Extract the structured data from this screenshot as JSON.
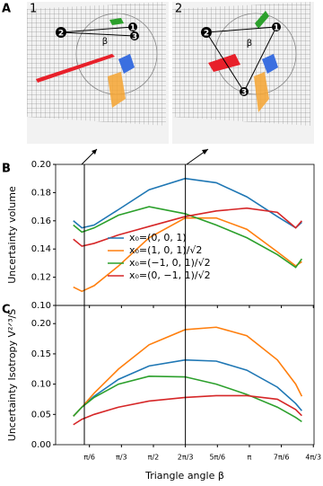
{
  "panel_a": {
    "label": "A",
    "views": [
      {
        "label": "1",
        "nodes": [
          "1",
          "2",
          "3"
        ],
        "angle": "β"
      },
      {
        "label": "2",
        "nodes": [
          "1",
          "2",
          "3"
        ],
        "angle": "β"
      }
    ]
  },
  "chart_data": [
    {
      "type": "line",
      "panel_label": "B",
      "ylabel": "Uncertainty volume",
      "x": [
        0.26,
        0.4,
        0.6,
        1.0,
        1.5,
        2.09,
        2.6,
        3.1,
        3.6,
        3.9,
        4.0
      ],
      "series": [
        {
          "name": "x₀=(0, 0, 1)",
          "color": "#1f77b4",
          "values": [
            0.16,
            0.155,
            0.157,
            0.168,
            0.182,
            0.19,
            0.187,
            0.177,
            0.163,
            0.155,
            0.159
          ]
        },
        {
          "name": "x₀=(1, 0, 1)/√2",
          "color": "#ff7f0e",
          "values": [
            0.113,
            0.11,
            0.114,
            0.128,
            0.148,
            0.162,
            0.162,
            0.154,
            0.138,
            0.128,
            0.131
          ]
        },
        {
          "name": "x₀=(−1, 0, 1)/√2",
          "color": "#2ca02c",
          "values": [
            0.157,
            0.152,
            0.155,
            0.164,
            0.17,
            0.165,
            0.157,
            0.148,
            0.136,
            0.127,
            0.133
          ]
        },
        {
          "name": "x₀=(0, −1, 1)/√2",
          "color": "#d62728",
          "values": [
            0.147,
            0.142,
            0.144,
            0.15,
            0.156,
            0.163,
            0.167,
            0.169,
            0.166,
            0.155,
            0.16
          ]
        }
      ],
      "xlim": [
        -0.03,
        4.2
      ],
      "ylim": [
        0.1,
        0.2
      ],
      "xticks": [
        0.5236,
        1.0472,
        1.5708,
        2.0944,
        2.618,
        3.1416,
        3.6652,
        4.1888
      ],
      "yticks": [
        {
          "value": 0.1,
          "label": "0.10"
        },
        {
          "value": 0.12,
          "label": "0.12"
        },
        {
          "value": 0.14,
          "label": "0.14"
        },
        {
          "value": 0.16,
          "label": "0.16"
        },
        {
          "value": 0.18,
          "label": "0.18"
        },
        {
          "value": 0.2,
          "label": "0.20"
        }
      ],
      "vlines": [
        0.44,
        2.0944
      ],
      "legend": "lower center"
    },
    {
      "type": "line",
      "panel_label": "C",
      "ylabel": "Uncertainty Isotropy V²ᐟ³/S",
      "xlabel": "Triangle angle β",
      "x": [
        0.26,
        0.4,
        0.6,
        1.0,
        1.5,
        2.09,
        2.6,
        3.1,
        3.6,
        3.9,
        4.0
      ],
      "series": [
        {
          "color": "#1f77b4",
          "values": [
            0.047,
            0.062,
            0.08,
            0.108,
            0.13,
            0.14,
            0.138,
            0.123,
            0.095,
            0.068,
            0.056
          ]
        },
        {
          "color": "#ff7f0e",
          "values": [
            0.047,
            0.062,
            0.085,
            0.125,
            0.165,
            0.19,
            0.194,
            0.18,
            0.14,
            0.1,
            0.08
          ]
        },
        {
          "color": "#2ca02c",
          "values": [
            0.047,
            0.062,
            0.078,
            0.1,
            0.113,
            0.112,
            0.1,
            0.083,
            0.062,
            0.045,
            0.038
          ]
        },
        {
          "color": "#d62728",
          "values": [
            0.033,
            0.042,
            0.05,
            0.062,
            0.072,
            0.078,
            0.081,
            0.081,
            0.075,
            0.058,
            0.048
          ]
        }
      ],
      "xlim": [
        -0.03,
        4.2
      ],
      "ylim": [
        0,
        0.23
      ],
      "xticks": [
        {
          "value": 0.5236,
          "label": "π/6"
        },
        {
          "value": 1.0472,
          "label": "π/3"
        },
        {
          "value": 1.5708,
          "label": "π/2"
        },
        {
          "value": 2.0944,
          "label": "2π/3"
        },
        {
          "value": 2.618,
          "label": "5π/6"
        },
        {
          "value": 3.1416,
          "label": "π"
        },
        {
          "value": 3.6652,
          "label": "7π/6"
        },
        {
          "value": 4.1888,
          "label": "4π/3"
        }
      ],
      "yticks": [
        {
          "value": 0,
          "label": "0.00"
        },
        {
          "value": 0.05,
          "label": "0.05"
        },
        {
          "value": 0.1,
          "label": "0.10"
        },
        {
          "value": 0.15,
          "label": "0.15"
        },
        {
          "value": 0.2,
          "label": "0.20"
        }
      ]
    }
  ]
}
